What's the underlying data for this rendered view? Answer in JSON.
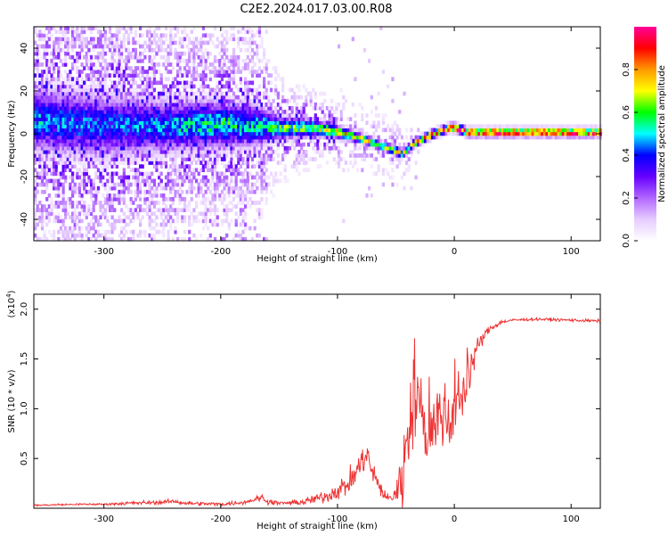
{
  "title": "C2E2.2024.017.03.00.R08",
  "chart_data": [
    {
      "type": "heatmap",
      "name": "spectrogram",
      "xlabel": "Height of straight line (km)",
      "ylabel": "Frequency (Hz)",
      "xlim": [
        -360,
        125
      ],
      "ylim": [
        -50,
        50
      ],
      "xticks": [
        -300,
        -200,
        -100,
        0,
        100
      ],
      "yticks": [
        -40,
        -20,
        0,
        20,
        40
      ],
      "colorbar": {
        "label": "Normalized spectral amplitude",
        "range": [
          0,
          1
        ],
        "ticks": [
          0.0,
          0.2,
          0.4,
          0.6,
          0.8
        ],
        "stops": [
          "#ffffff",
          "#e6ccff",
          "#b266ff",
          "#6600ff",
          "#0000ff",
          "#00ffff",
          "#00ff00",
          "#ffff00",
          "#ff9900",
          "#ff0000",
          "#ff0099"
        ]
      },
      "ridge": {
        "x": [
          -360,
          -300,
          -250,
          -200,
          -170,
          -150,
          -120,
          -100,
          -80,
          -60,
          -45,
          -35,
          -20,
          -10,
          -5,
          0,
          10,
          20,
          60,
          100,
          125
        ],
        "frequency": [
          6,
          3,
          3,
          4,
          3,
          2,
          2,
          0,
          -3,
          -7,
          -10,
          -5,
          -1,
          1,
          2,
          2,
          0,
          0,
          0,
          0,
          0
        ],
        "peak_amplitude": [
          0.45,
          0.4,
          0.45,
          0.55,
          0.5,
          0.6,
          0.65,
          0.7,
          0.75,
          0.7,
          0.65,
          0.72,
          0.8,
          0.85,
          0.9,
          0.95,
          0.95,
          0.95,
          0.95,
          0.95,
          0.95
        ],
        "spread_hz": [
          35,
          35,
          28,
          25,
          22,
          12,
          9,
          7,
          5,
          5,
          5,
          3,
          2,
          2,
          2,
          2,
          1.5,
          1.2,
          1.2,
          1.2,
          1.2
        ]
      }
    },
    {
      "type": "line",
      "name": "snr",
      "xlabel": "Height of straight line (km)",
      "ylabel": "SNR (10 * v/v)",
      "scale_label": "(x10",
      "scale_exponent": "4",
      "scale_suffix": ")",
      "xlim": [
        -360,
        125
      ],
      "ylim": [
        0,
        2.15
      ],
      "xticks": [
        -300,
        -200,
        -100,
        0,
        100
      ],
      "yticks": [
        0.5,
        1.0,
        1.5,
        2.0
      ],
      "color": "#ee3333",
      "series": [
        {
          "name": "SNR",
          "x": [
            -360,
            -320,
            -300,
            -280,
            -250,
            -240,
            -230,
            -200,
            -180,
            -170,
            -165,
            -160,
            -150,
            -130,
            -110,
            -100,
            -90,
            -80,
            -75,
            -70,
            -65,
            -60,
            -55,
            -50,
            -45,
            -40,
            -35,
            -30,
            -25,
            -20,
            -15,
            -10,
            -5,
            0,
            5,
            10,
            15,
            20,
            25,
            30,
            40,
            50,
            70,
            100,
            125
          ],
          "y": [
            0.03,
            0.04,
            0.04,
            0.05,
            0.06,
            0.07,
            0.05,
            0.04,
            0.06,
            0.09,
            0.11,
            0.07,
            0.05,
            0.06,
            0.12,
            0.18,
            0.25,
            0.45,
            0.55,
            0.35,
            0.25,
            0.12,
            0.1,
            0.15,
            0.3,
            0.7,
            1.25,
            1.0,
            0.7,
            0.85,
            0.9,
            0.95,
            0.85,
            1.0,
            1.1,
            1.2,
            1.45,
            1.62,
            1.72,
            1.8,
            1.87,
            1.89,
            1.9,
            1.89,
            1.88
          ],
          "noise_amp": [
            0.01,
            0.01,
            0.01,
            0.02,
            0.02,
            0.02,
            0.02,
            0.02,
            0.02,
            0.03,
            0.04,
            0.03,
            0.02,
            0.03,
            0.07,
            0.09,
            0.12,
            0.15,
            0.15,
            0.12,
            0.1,
            0.05,
            0.06,
            0.12,
            0.35,
            0.5,
            0.55,
            0.45,
            0.4,
            0.35,
            0.35,
            0.35,
            0.3,
            0.3,
            0.3,
            0.28,
            0.18,
            0.1,
            0.06,
            0.04,
            0.02,
            0.015,
            0.015,
            0.015,
            0.015
          ]
        }
      ]
    }
  ]
}
